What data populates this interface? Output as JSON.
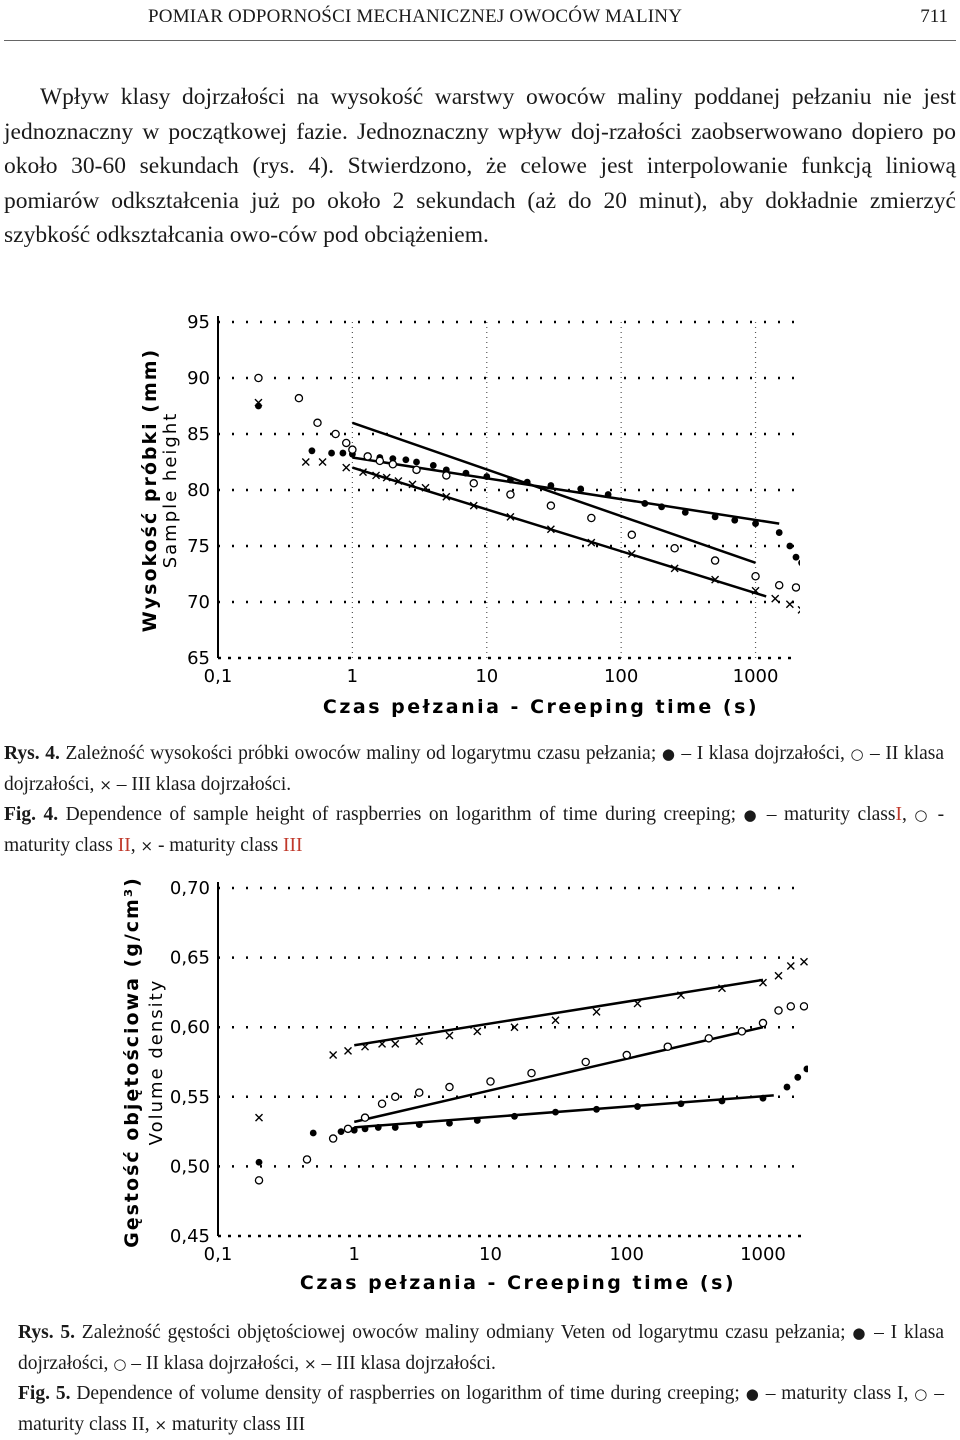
{
  "header": {
    "title": "POMIAR ODPORNOŚCI MECHANICZNEJ OWOCÓW MALINY",
    "page_number": "711"
  },
  "body": {
    "paragraph": "Wpływ klasy dojrzałości na wysokość warstwy owoców maliny poddanej pełzaniu nie jest jednoznaczny w początkowej fazie. Jednoznaczny wpływ doj-rzałości zaobserwowano dopiero po około 30-60 sekundach (rys. 4). Stwierdzono, że celowe jest interpolowanie funkcją liniową pomiarów odkształcenia już po około 2 sekundach (aż do 20 minut), aby dokładnie zmierzyć szybkość odkształcania owo-ców pod obciążeniem."
  },
  "fig4": {
    "caption_pl_label": "Rys. 4.",
    "caption_pl_a": "Zależność wysokości próbki owoców maliny od logarytmu czasu pełzania;",
    "caption_pl_b": "– I klasa dojrzałości,",
    "caption_pl_c": "– II klasa dojrzałości,",
    "caption_pl_d": "– III klasa dojrzałości.",
    "caption_en_label": "Fig. 4.",
    "caption_en_a": "Dependence of sample height of raspberries on logarithm of time during creeping;",
    "caption_en_b": "– maturity class",
    "caption_en_c": "I",
    "caption_en_d": ",",
    "caption_en_e": "- maturity class",
    "caption_en_f": "II",
    "caption_en_g": ",",
    "caption_en_h": "- maturity  class",
    "caption_en_i": "III"
  },
  "fig5": {
    "caption_pl_label": "Rys. 5.",
    "caption_pl_a": "Zależność gęstości objętościowej owoców maliny odmiany Veten od logarytmu czasu pełzania;",
    "caption_pl_b": "– I klasa dojrzałości,",
    "caption_pl_c": "– II klasa dojrzałości,",
    "caption_pl_d": "– III klasa dojrzałości.",
    "caption_en_label": "Fig. 5.",
    "caption_en_a": "Dependence of volume density of raspberries on logarithm of time during creeping;",
    "caption_en_b": "– maturity class I,",
    "caption_en_c": "– maturity class II,",
    "caption_en_d": "maturity class III"
  },
  "chart_data": [
    {
      "type": "scatter",
      "title": "",
      "xlabel": "Czas pełzania - Creeping time (s)",
      "ylabel": "Wysokość próbki (mm)",
      "ylabel2": "Sample height",
      "x_scale": "log",
      "xlim": [
        0.1,
        2000
      ],
      "ylim": [
        65,
        95
      ],
      "x_ticks": [
        0.1,
        1,
        10,
        100,
        1000
      ],
      "x_tick_labels": [
        "0,1",
        "1",
        "10",
        "100",
        "1000"
      ],
      "y_ticks": [
        65,
        70,
        75,
        80,
        85,
        90,
        95
      ],
      "y_tick_labels": [
        "65",
        "70",
        "75",
        "80",
        "85",
        "90",
        "95"
      ],
      "vlines": [
        1,
        1000
      ],
      "grid": "dotted",
      "legend": "none",
      "series": [
        {
          "marker": "filled-circle",
          "points": [
            [
              0.2,
              87.5
            ],
            [
              0.5,
              83.5
            ],
            [
              0.7,
              83.3
            ],
            [
              0.85,
              83.3
            ],
            [
              1,
              83.2
            ],
            [
              1.3,
              83
            ],
            [
              1.6,
              82.9
            ],
            [
              2,
              82.8
            ],
            [
              2.5,
              82.7
            ],
            [
              3,
              82.5
            ],
            [
              4,
              82.2
            ],
            [
              5,
              81.8
            ],
            [
              7,
              81.5
            ],
            [
              10,
              81.2
            ],
            [
              15,
              80.9
            ],
            [
              20,
              80.7
            ],
            [
              30,
              80.4
            ],
            [
              50,
              80.1
            ],
            [
              80,
              79.6
            ],
            [
              150,
              78.8
            ],
            [
              200,
              78.5
            ],
            [
              300,
              78
            ],
            [
              500,
              77.6
            ],
            [
              700,
              77.3
            ],
            [
              1000,
              77
            ],
            [
              1500,
              76.2
            ],
            [
              1800,
              75
            ],
            [
              2000,
              74
            ],
            [
              2200,
              73.5
            ]
          ],
          "fit_line": [
            [
              1,
              82.9
            ],
            [
              1500,
              77
            ]
          ]
        },
        {
          "marker": "open-circle",
          "points": [
            [
              0.2,
              90
            ],
            [
              0.4,
              88.2
            ],
            [
              0.55,
              86
            ],
            [
              0.75,
              85
            ],
            [
              0.9,
              84.2
            ],
            [
              1,
              83.6
            ],
            [
              1.3,
              83
            ],
            [
              1.6,
              82.6
            ],
            [
              2,
              82.3
            ],
            [
              3,
              81.8
            ],
            [
              5,
              81.3
            ],
            [
              8,
              80.6
            ],
            [
              15,
              79.6
            ],
            [
              30,
              78.6
            ],
            [
              60,
              77.5
            ],
            [
              120,
              76
            ],
            [
              250,
              74.8
            ],
            [
              500,
              73.7
            ],
            [
              1000,
              72.3
            ],
            [
              1500,
              71.5
            ],
            [
              2000,
              71.3
            ],
            [
              2500,
              71
            ],
            [
              3000,
              70.9
            ]
          ],
          "fit_line": [
            [
              1,
              86
            ],
            [
              1000,
              73.5
            ]
          ]
        },
        {
          "marker": "cross",
          "points": [
            [
              0.2,
              87.8
            ],
            [
              0.45,
              82.5
            ],
            [
              0.6,
              82.5
            ],
            [
              0.9,
              82
            ],
            [
              1.2,
              81.6
            ],
            [
              1.5,
              81.3
            ],
            [
              1.8,
              81.1
            ],
            [
              2.2,
              80.8
            ],
            [
              2.8,
              80.5
            ],
            [
              3.5,
              80.2
            ],
            [
              5,
              79.4
            ],
            [
              8,
              78.6
            ],
            [
              15,
              77.6
            ],
            [
              30,
              76.5
            ],
            [
              60,
              75.3
            ],
            [
              120,
              74.3
            ],
            [
              250,
              73
            ],
            [
              500,
              72
            ],
            [
              1000,
              71
            ],
            [
              1400,
              70.3
            ],
            [
              1800,
              69.8
            ],
            [
              2200,
              69.3
            ]
          ],
          "fit_line": [
            [
              1,
              82
            ],
            [
              1200,
              70.5
            ]
          ]
        }
      ]
    },
    {
      "type": "scatter",
      "title": "",
      "xlabel": "Czas pełzania - Creeping time (s)",
      "ylabel": "Gęstość objętościowa (g/cm³)",
      "ylabel2": "Volume density",
      "x_scale": "log",
      "xlim": [
        0.1,
        2000
      ],
      "ylim": [
        0.45,
        0.7
      ],
      "x_ticks": [
        0.1,
        1,
        10,
        100,
        1000
      ],
      "x_tick_labels": [
        "0,1",
        "1",
        "10",
        "100",
        "1000"
      ],
      "y_ticks": [
        0.45,
        0.5,
        0.55,
        0.6,
        0.65,
        0.7
      ],
      "y_tick_labels": [
        "0,45",
        "0,50",
        "0,55",
        "0,60",
        "0,65",
        "0,70"
      ],
      "grid": "dotted",
      "legend": "none",
      "series": [
        {
          "marker": "filled-circle",
          "points": [
            [
              0.2,
              0.503
            ],
            [
              0.5,
              0.524
            ],
            [
              0.8,
              0.525
            ],
            [
              1,
              0.526
            ],
            [
              1.2,
              0.527
            ],
            [
              1.5,
              0.528
            ],
            [
              2,
              0.528
            ],
            [
              3,
              0.53
            ],
            [
              5,
              0.531
            ],
            [
              8,
              0.533
            ],
            [
              15,
              0.536
            ],
            [
              30,
              0.539
            ],
            [
              60,
              0.541
            ],
            [
              120,
              0.543
            ],
            [
              250,
              0.545
            ],
            [
              500,
              0.547
            ],
            [
              1000,
              0.549
            ],
            [
              1500,
              0.557
            ],
            [
              1800,
              0.564
            ],
            [
              2100,
              0.57
            ]
          ],
          "fit_line": [
            [
              1,
              0.528
            ],
            [
              1200,
              0.551
            ]
          ]
        },
        {
          "marker": "open-circle",
          "points": [
            [
              0.2,
              0.49
            ],
            [
              0.45,
              0.505
            ],
            [
              0.7,
              0.52
            ],
            [
              0.9,
              0.527
            ],
            [
              1.2,
              0.535
            ],
            [
              1.6,
              0.545
            ],
            [
              2,
              0.55
            ],
            [
              3,
              0.553
            ],
            [
              5,
              0.557
            ],
            [
              10,
              0.561
            ],
            [
              20,
              0.567
            ],
            [
              50,
              0.575
            ],
            [
              100,
              0.58
            ],
            [
              200,
              0.586
            ],
            [
              400,
              0.592
            ],
            [
              700,
              0.597
            ],
            [
              1000,
              0.603
            ],
            [
              1300,
              0.612
            ],
            [
              1600,
              0.615
            ],
            [
              2000,
              0.615
            ],
            [
              2500,
              0.615
            ]
          ],
          "fit_line": [
            [
              1,
              0.532
            ],
            [
              1000,
              0.6
            ]
          ]
        },
        {
          "marker": "cross",
          "points": [
            [
              0.2,
              0.535
            ],
            [
              0.7,
              0.58
            ],
            [
              0.9,
              0.583
            ],
            [
              1.2,
              0.586
            ],
            [
              1.6,
              0.588
            ],
            [
              2,
              0.588
            ],
            [
              3,
              0.59
            ],
            [
              5,
              0.594
            ],
            [
              8,
              0.597
            ],
            [
              15,
              0.6
            ],
            [
              30,
              0.605
            ],
            [
              60,
              0.611
            ],
            [
              120,
              0.617
            ],
            [
              250,
              0.623
            ],
            [
              500,
              0.628
            ],
            [
              1000,
              0.632
            ],
            [
              1300,
              0.637
            ],
            [
              1600,
              0.644
            ],
            [
              2000,
              0.647
            ],
            [
              2500,
              0.65
            ]
          ],
          "fit_line": [
            [
              1,
              0.587
            ],
            [
              1000,
              0.634
            ]
          ]
        }
      ]
    }
  ]
}
